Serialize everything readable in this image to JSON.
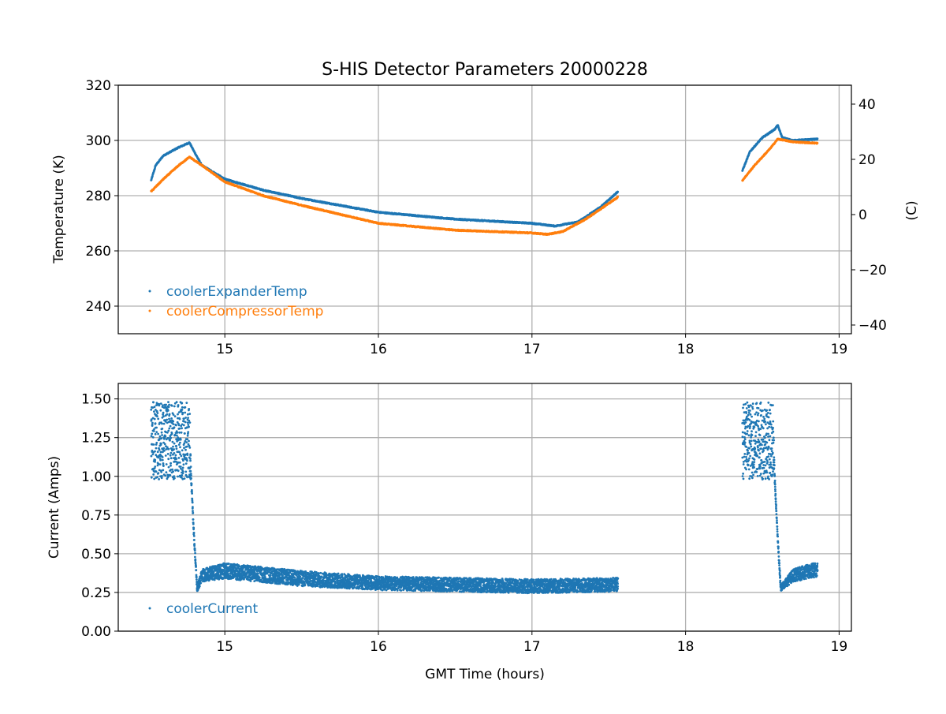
{
  "chart_data": [
    {
      "type": "scatter",
      "title": "S-HIS Detector Parameters 20000228",
      "xlabel": "",
      "ylabel": "Temperature (K)",
      "ylabel_right": "(C)",
      "xlim": [
        14.306,
        19.08
      ],
      "ylim": [
        230,
        320
      ],
      "ylim_right": [
        -43.15,
        46.85
      ],
      "xticks": [
        "15",
        "16",
        "17",
        "18",
        "19"
      ],
      "xtick_values": [
        15,
        16,
        17,
        18,
        19
      ],
      "yticks": [
        "240",
        "260",
        "280",
        "300",
        "320"
      ],
      "ytick_values": [
        240,
        260,
        280,
        300,
        320
      ],
      "yticks_right": [
        "−40",
        "−20",
        "0",
        "20",
        "40"
      ],
      "ytick_right_values": [
        -40,
        -20,
        0,
        20,
        40
      ],
      "grid": true,
      "legend_placement": "lower-left",
      "series": [
        {
          "name": "coolerExpanderTemp",
          "color": "#1f77b4",
          "segments": [
            [
              [
                14.52,
                285.5
              ],
              [
                14.55,
                291
              ],
              [
                14.6,
                294.5
              ],
              [
                14.7,
                297.5
              ],
              [
                14.77,
                299.2
              ],
              [
                14.8,
                296
              ],
              [
                14.85,
                291
              ],
              [
                15.0,
                286
              ],
              [
                15.25,
                282
              ],
              [
                15.5,
                279
              ],
              [
                16.0,
                274
              ],
              [
                16.5,
                271.5
              ],
              [
                17.0,
                270
              ],
              [
                17.15,
                269
              ],
              [
                17.3,
                270.5
              ],
              [
                17.45,
                276
              ],
              [
                17.56,
                281.5
              ]
            ],
            [
              [
                18.37,
                289
              ],
              [
                18.42,
                296
              ],
              [
                18.5,
                301
              ],
              [
                18.58,
                304
              ],
              [
                18.6,
                305.5
              ],
              [
                18.63,
                301
              ],
              [
                18.7,
                300
              ],
              [
                18.86,
                300.5
              ]
            ]
          ]
        },
        {
          "name": "coolerCompressorTemp",
          "color": "#ff7f0e",
          "segments": [
            [
              [
                14.52,
                281.5
              ],
              [
                14.6,
                286
              ],
              [
                14.7,
                291
              ],
              [
                14.77,
                294
              ],
              [
                14.85,
                291
              ],
              [
                15.0,
                285
              ],
              [
                15.25,
                280
              ],
              [
                15.5,
                276.5
              ],
              [
                16.0,
                270
              ],
              [
                16.5,
                267.5
              ],
              [
                17.0,
                266.5
              ],
              [
                17.1,
                266
              ],
              [
                17.2,
                267
              ],
              [
                17.35,
                271.5
              ],
              [
                17.56,
                279.5
              ]
            ],
            [
              [
                18.37,
                285.5
              ],
              [
                18.45,
                291
              ],
              [
                18.55,
                297
              ],
              [
                18.6,
                300.5
              ],
              [
                18.7,
                299.5
              ],
              [
                18.86,
                299
              ]
            ]
          ]
        }
      ]
    },
    {
      "type": "scatter",
      "title": "",
      "xlabel": "GMT Time (hours)",
      "ylabel": "Current (Amps)",
      "xlim": [
        14.306,
        19.08
      ],
      "ylim": [
        0,
        1.6
      ],
      "xticks": [
        "15",
        "16",
        "17",
        "18",
        "19"
      ],
      "xtick_values": [
        15,
        16,
        17,
        18,
        19
      ],
      "yticks": [
        "0.00",
        "0.25",
        "0.50",
        "0.75",
        "1.00",
        "1.25",
        "1.50"
      ],
      "ytick_values": [
        0,
        0.25,
        0.5,
        0.75,
        1.0,
        1.25,
        1.5
      ],
      "grid": true,
      "legend_placement": "lower-left",
      "series": [
        {
          "name": "coolerCurrent",
          "color": "#1f77b4",
          "segments": [
            [
              [
                14.52,
                1.23,
                0.25
              ],
              [
                14.77,
                1.23,
                0.25
              ],
              [
                14.78,
                1.0,
                0.02
              ],
              [
                14.8,
                0.6,
                0.02
              ],
              [
                14.82,
                0.27,
                0.02
              ],
              [
                14.85,
                0.36,
                0.04
              ],
              [
                15.0,
                0.39,
                0.05
              ],
              [
                15.5,
                0.34,
                0.05
              ],
              [
                16.0,
                0.31,
                0.045
              ],
              [
                16.5,
                0.3,
                0.045
              ],
              [
                17.0,
                0.29,
                0.045
              ],
              [
                17.56,
                0.3,
                0.045
              ]
            ],
            [
              [
                18.37,
                1.23,
                0.25
              ],
              [
                18.57,
                1.23,
                0.25
              ],
              [
                18.58,
                1.0,
                0.02
              ],
              [
                18.6,
                0.6,
                0.02
              ],
              [
                18.62,
                0.28,
                0.02
              ],
              [
                18.7,
                0.36,
                0.04
              ],
              [
                18.86,
                0.4,
                0.05
              ]
            ]
          ]
        }
      ]
    }
  ]
}
